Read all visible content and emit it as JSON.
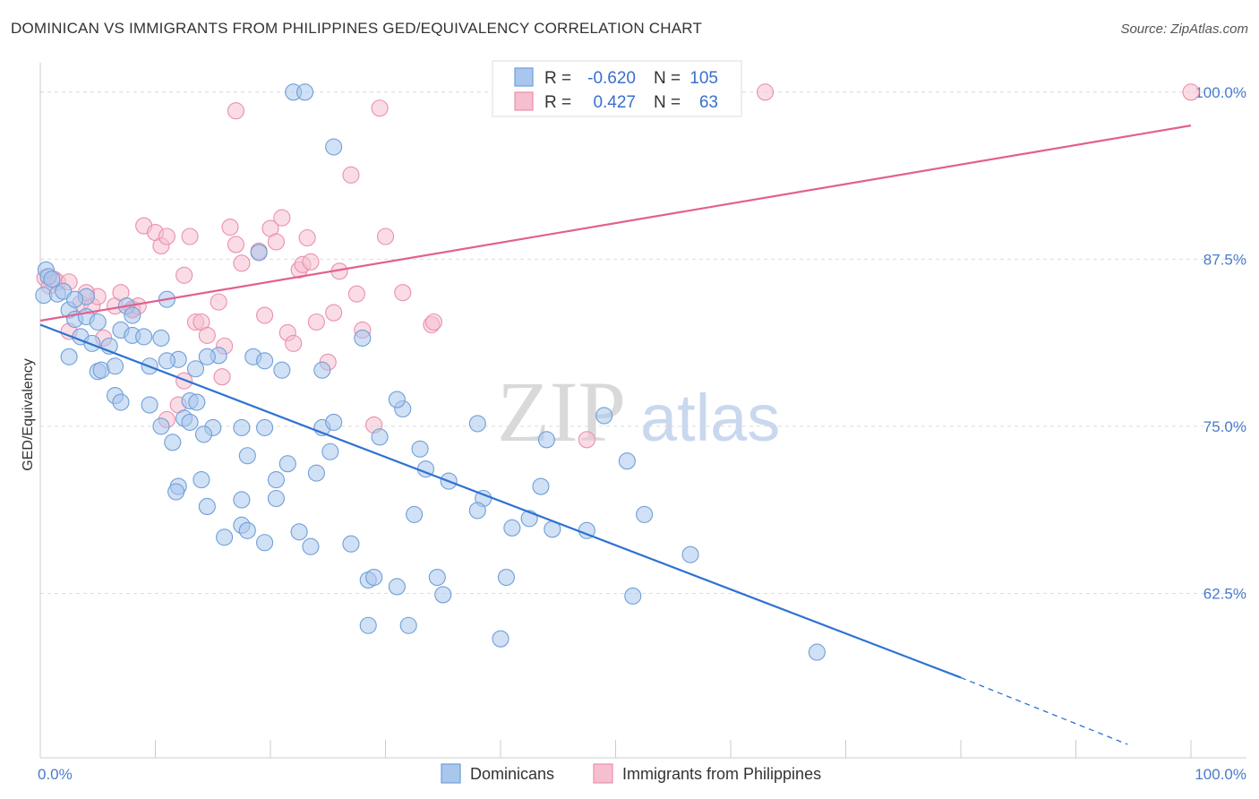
{
  "title": "DOMINICAN VS IMMIGRANTS FROM PHILIPPINES GED/EQUIVALENCY CORRELATION CHART",
  "source": "Source: ZipAtlas.com",
  "watermark": {
    "zip": "ZIP",
    "atlas": "atlas"
  },
  "colors": {
    "blue_fill": "#a9c6ec",
    "blue_stroke": "#6f9fd8",
    "blue_line": "#2e72d2",
    "pink_fill": "#f5bfd0",
    "pink_stroke": "#ea8fae",
    "pink_line": "#e2608e",
    "label": "#4a7bc8",
    "grid": "#dddddd"
  },
  "legend": {
    "rows": [
      {
        "r_label": "R =",
        "r_value": "-0.620",
        "n_label": "N =",
        "n_value": "105"
      },
      {
        "r_label": "R =",
        "r_value": "0.427",
        "n_label": "N =",
        "n_value": "63"
      }
    ]
  },
  "chart_data": {
    "type": "scatter",
    "xlabel": "",
    "ylabel": "GED/Equivalency",
    "xlim": [
      0,
      100
    ],
    "ylim": [
      50.2,
      102.2
    ],
    "x_tick_labels": [
      {
        "value": 0,
        "label": "0.0%"
      },
      {
        "value": 100,
        "label": "100.0%"
      }
    ],
    "y_ticks": [
      {
        "value": 100,
        "label": "100.0%"
      },
      {
        "value": 87.5,
        "label": "87.5%"
      },
      {
        "value": 75,
        "label": "75.0%"
      },
      {
        "value": 62.5,
        "label": "62.5%"
      }
    ],
    "x_minor_ticks": [
      0,
      10,
      20,
      30,
      40,
      50,
      60,
      70,
      80,
      90,
      100
    ],
    "series": [
      {
        "name": "Dominicans",
        "trend": {
          "x0": 0,
          "y0": 82.6,
          "x1": 80,
          "y1": 56.2,
          "dash_to_x": 94.5,
          "dash_to_y": 51.2
        },
        "points": [
          [
            0.3,
            84.8
          ],
          [
            0.5,
            86.7
          ],
          [
            0.7,
            86.2
          ],
          [
            1.0,
            86.0
          ],
          [
            1.5,
            84.9
          ],
          [
            2.0,
            85.1
          ],
          [
            2.5,
            83.7
          ],
          [
            3.0,
            83.0
          ],
          [
            4.0,
            83.2
          ],
          [
            5.0,
            82.8
          ],
          [
            2.5,
            80.2
          ],
          [
            3.5,
            81.7
          ],
          [
            4.5,
            81.2
          ],
          [
            6.0,
            81.0
          ],
          [
            7.0,
            82.2
          ],
          [
            8.0,
            81.8
          ],
          [
            9.0,
            81.7
          ],
          [
            10.5,
            81.6
          ],
          [
            12.0,
            80.0
          ],
          [
            11.0,
            79.9
          ],
          [
            5.0,
            79.1
          ],
          [
            5.3,
            79.2
          ],
          [
            6.5,
            79.5
          ],
          [
            9.5,
            79.5
          ],
          [
            13.5,
            79.3
          ],
          [
            15.5,
            80.3
          ],
          [
            18.5,
            80.2
          ],
          [
            19.5,
            79.9
          ],
          [
            21.0,
            79.2
          ],
          [
            24.5,
            79.2
          ],
          [
            6.5,
            77.3
          ],
          [
            7.0,
            76.8
          ],
          [
            9.5,
            76.6
          ],
          [
            13.0,
            76.9
          ],
          [
            13.6,
            76.8
          ],
          [
            10.5,
            75.0
          ],
          [
            12.5,
            75.6
          ],
          [
            13.0,
            75.3
          ],
          [
            15.0,
            74.9
          ],
          [
            14.2,
            74.4
          ],
          [
            17.5,
            74.9
          ],
          [
            19.5,
            74.9
          ],
          [
            11.5,
            73.8
          ],
          [
            18.0,
            72.8
          ],
          [
            21.5,
            72.2
          ],
          [
            24.0,
            71.5
          ],
          [
            20.5,
            71.0
          ],
          [
            24.5,
            74.9
          ],
          [
            25.2,
            73.1
          ],
          [
            14.0,
            71.0
          ],
          [
            12.0,
            70.5
          ],
          [
            11.8,
            70.1
          ],
          [
            14.5,
            69.0
          ],
          [
            17.5,
            69.5
          ],
          [
            20.5,
            69.6
          ],
          [
            17.5,
            67.6
          ],
          [
            18.0,
            67.2
          ],
          [
            19.5,
            66.3
          ],
          [
            22.5,
            67.1
          ],
          [
            23.5,
            66.0
          ],
          [
            27.0,
            66.2
          ],
          [
            16.0,
            66.7
          ],
          [
            28.5,
            63.5
          ],
          [
            29.0,
            63.7
          ],
          [
            31.0,
            63.0
          ],
          [
            34.5,
            63.7
          ],
          [
            35.0,
            62.4
          ],
          [
            40.5,
            63.7
          ],
          [
            28.5,
            60.1
          ],
          [
            32.0,
            60.1
          ],
          [
            40.0,
            59.1
          ],
          [
            32.5,
            68.4
          ],
          [
            38.5,
            69.6
          ],
          [
            38.0,
            68.7
          ],
          [
            41.0,
            67.4
          ],
          [
            42.5,
            68.1
          ],
          [
            44.5,
            67.3
          ],
          [
            47.5,
            67.2
          ],
          [
            51.5,
            62.3
          ],
          [
            52.5,
            68.4
          ],
          [
            56.5,
            65.4
          ],
          [
            67.5,
            58.1
          ],
          [
            29.5,
            74.2
          ],
          [
            31.5,
            76.3
          ],
          [
            31.0,
            77.0
          ],
          [
            33.0,
            73.3
          ],
          [
            33.5,
            71.8
          ],
          [
            35.5,
            70.9
          ],
          [
            38.0,
            75.2
          ],
          [
            44.0,
            74.0
          ],
          [
            43.5,
            70.5
          ],
          [
            49.0,
            75.8
          ],
          [
            51.0,
            72.4
          ],
          [
            28.0,
            81.6
          ],
          [
            25.5,
            75.3
          ],
          [
            14.5,
            80.2
          ],
          [
            11.0,
            84.5
          ],
          [
            7.5,
            84.0
          ],
          [
            8.0,
            83.3
          ],
          [
            4.0,
            84.7
          ],
          [
            19.0,
            88.0
          ],
          [
            22.0,
            100.0
          ],
          [
            23.0,
            100.0
          ],
          [
            25.5,
            95.9
          ],
          [
            3.0,
            84.5
          ]
        ]
      },
      {
        "name": "Immigrants from Philippines",
        "trend": {
          "x0": 0,
          "y0": 82.9,
          "x1": 100,
          "y1": 97.5
        },
        "points": [
          [
            0.4,
            86.1
          ],
          [
            0.8,
            85.5
          ],
          [
            1.2,
            86.0
          ],
          [
            1.5,
            85.8
          ],
          [
            2.5,
            85.8
          ],
          [
            3.5,
            84.2
          ],
          [
            4.5,
            84.0
          ],
          [
            5.0,
            84.7
          ],
          [
            6.5,
            84.0
          ],
          [
            7.0,
            85.0
          ],
          [
            8.0,
            83.8
          ],
          [
            2.5,
            82.1
          ],
          [
            5.5,
            81.6
          ],
          [
            8.0,
            83.7
          ],
          [
            9.0,
            90.0
          ],
          [
            10.0,
            89.5
          ],
          [
            10.5,
            88.5
          ],
          [
            11.0,
            89.2
          ],
          [
            12.5,
            78.4
          ],
          [
            12.0,
            76.6
          ],
          [
            11.0,
            75.5
          ],
          [
            12.5,
            86.3
          ],
          [
            13.0,
            89.2
          ],
          [
            13.5,
            82.8
          ],
          [
            14.0,
            82.8
          ],
          [
            14.5,
            81.8
          ],
          [
            15.5,
            84.3
          ],
          [
            15.8,
            78.7
          ],
          [
            16.5,
            89.9
          ],
          [
            16.0,
            81.0
          ],
          [
            17.0,
            88.6
          ],
          [
            17.5,
            87.2
          ],
          [
            17.0,
            98.6
          ],
          [
            19.0,
            88.1
          ],
          [
            20.0,
            89.8
          ],
          [
            20.5,
            88.8
          ],
          [
            21.0,
            90.6
          ],
          [
            21.5,
            82.0
          ],
          [
            22.0,
            81.2
          ],
          [
            22.5,
            86.7
          ],
          [
            22.8,
            87.1
          ],
          [
            23.5,
            87.3
          ],
          [
            23.2,
            89.1
          ],
          [
            24.0,
            82.8
          ],
          [
            25.0,
            79.8
          ],
          [
            25.5,
            83.5
          ],
          [
            26.0,
            86.6
          ],
          [
            27.0,
            93.8
          ],
          [
            27.5,
            84.9
          ],
          [
            28.0,
            82.2
          ],
          [
            29.5,
            98.8
          ],
          [
            30.0,
            89.2
          ],
          [
            29.0,
            75.1
          ],
          [
            31.5,
            85.0
          ],
          [
            34.0,
            82.6
          ],
          [
            34.2,
            82.8
          ],
          [
            47.5,
            74.0
          ],
          [
            60.0,
            100.0
          ],
          [
            63.0,
            100.0
          ],
          [
            100.0,
            100.0
          ],
          [
            19.5,
            83.3
          ],
          [
            8.5,
            84.0
          ],
          [
            4.0,
            85.0
          ]
        ]
      }
    ]
  },
  "bottom_legend": {
    "items": [
      {
        "label": "Dominicans"
      },
      {
        "label": "Immigrants from Philippines"
      }
    ]
  }
}
